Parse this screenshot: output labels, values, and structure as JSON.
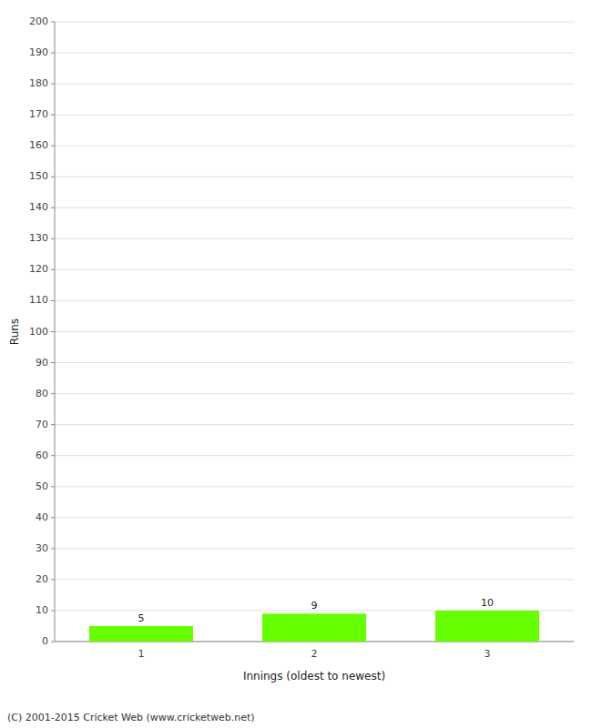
{
  "chart_data": {
    "type": "bar",
    "xlabel": "Innings (oldest to newest)",
    "ylabel": "Runs",
    "categories": [
      "1",
      "2",
      "3"
    ],
    "values": [
      5,
      9,
      10
    ],
    "color": "#66ff00",
    "ylim": [
      0,
      200
    ],
    "yticks": [
      0,
      10,
      20,
      30,
      40,
      50,
      60,
      70,
      80,
      90,
      100,
      110,
      120,
      130,
      140,
      150,
      160,
      170,
      180,
      190,
      200
    ],
    "grid": true,
    "data_labels": true,
    "annotations": [
      "(C) 2001-2015 Cricket Web (www.cricketweb.net)"
    ]
  }
}
